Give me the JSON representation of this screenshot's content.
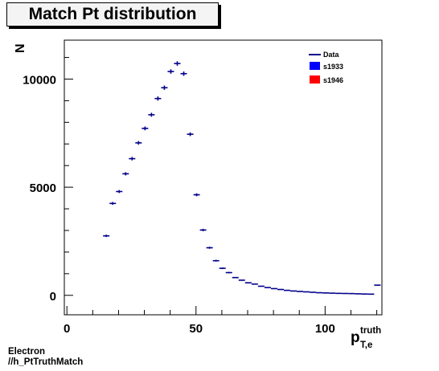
{
  "title": "Match Pt distribution",
  "footer": {
    "line1": "Electron",
    "line2": "//h_PtTruthMatch"
  },
  "chart_data": {
    "type": "scatter",
    "style": "histogram-points-with-x-error-bars",
    "ylabel": "N",
    "xlabel_main": "p",
    "xlabel_sup": "truth",
    "xlabel_sub": "T,e",
    "xlim": [
      -1,
      122
    ],
    "ylim": [
      -900,
      11800
    ],
    "x_ticks": [
      0,
      50,
      100
    ],
    "y_ticks": [
      0,
      5000,
      10000
    ],
    "bin_width": 2.5,
    "legend": {
      "position": "top-right",
      "entries": [
        {
          "name": "Data",
          "style": "line",
          "color": "#00008b"
        },
        {
          "name": "s1933",
          "style": "box",
          "color": "#0000ff"
        },
        {
          "name": "s1946",
          "style": "box",
          "color": "#ff0000"
        }
      ]
    },
    "series": [
      {
        "name": "Data",
        "color": "#00008b",
        "x": [
          15.25,
          17.75,
          20.25,
          22.75,
          25.25,
          27.75,
          30.25,
          32.75,
          35.25,
          37.75,
          40.25,
          42.75,
          45.25,
          47.75,
          50.25,
          52.75,
          55.25,
          57.75,
          60.25,
          62.75,
          65.25,
          67.75,
          70.25,
          72.75,
          75.25,
          77.75,
          80.25,
          82.75,
          85.25,
          87.75,
          90.25,
          92.75,
          95.25,
          97.75,
          100.25,
          102.75,
          105.25,
          107.75,
          110.25,
          112.75,
          115.25,
          117.75,
          120.25
        ],
        "y": [
          2750,
          4250,
          4800,
          5620,
          6320,
          7050,
          7720,
          8350,
          9100,
          9600,
          10350,
          10720,
          10250,
          7450,
          4650,
          3020,
          2200,
          1600,
          1250,
          1050,
          820,
          700,
          580,
          520,
          420,
          360,
          310,
          270,
          230,
          200,
          180,
          160,
          140,
          120,
          110,
          100,
          90,
          85,
          80,
          70,
          60,
          55,
          470
        ]
      }
    ]
  }
}
